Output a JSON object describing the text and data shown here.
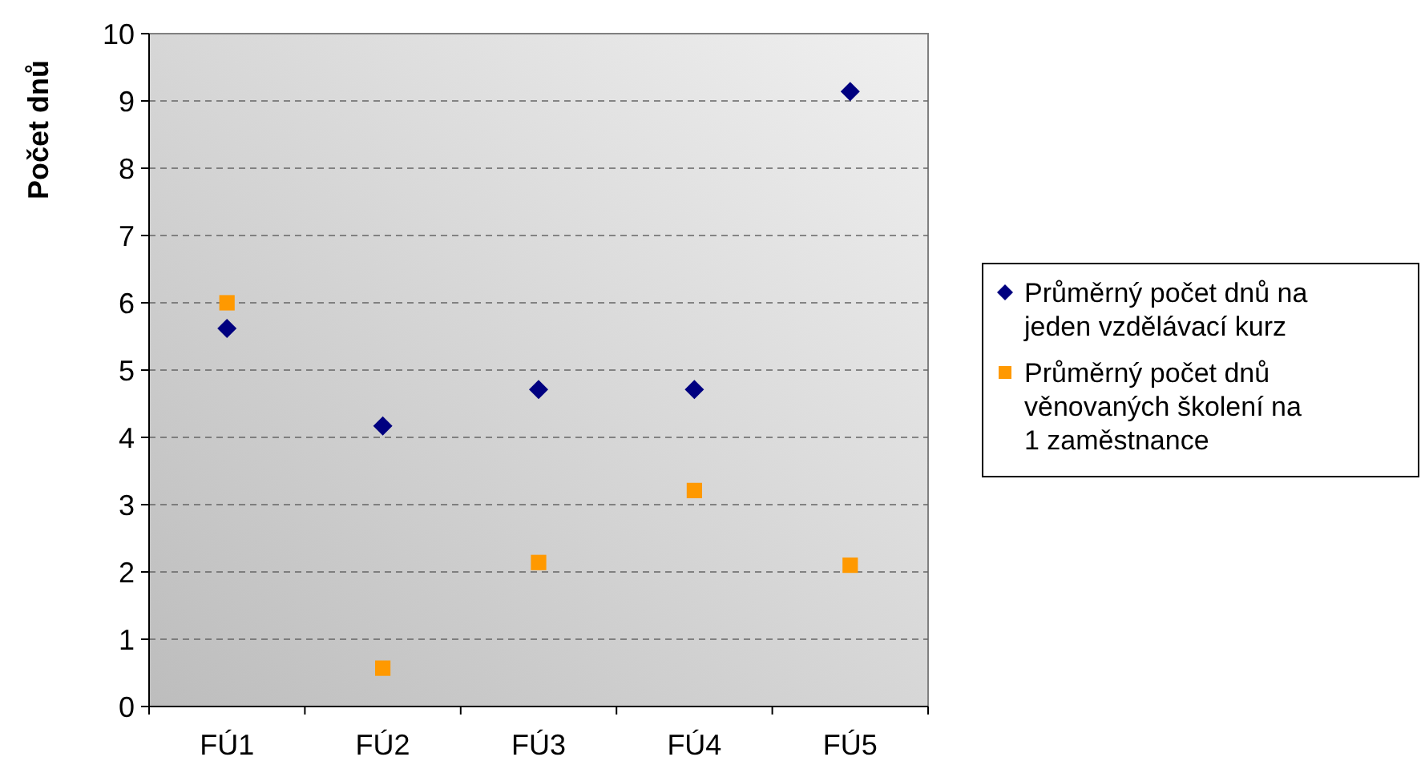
{
  "chart_data": {
    "type": "scatter",
    "ylabel": "Počet dnů",
    "categories": [
      "FÚ1",
      "FÚ2",
      "FÚ3",
      "FÚ4",
      "FÚ5"
    ],
    "series": [
      {
        "name": "Průměrný počet dnů na jeden vzdělávací kurz",
        "color": "#000080",
        "marker": "diamond",
        "values": [
          5.62,
          4.17,
          4.71,
          4.71,
          9.14
        ]
      },
      {
        "name": "Průměrný počet dnů věnovaných školení na 1 zaměstnance",
        "color": "#ff9900",
        "marker": "square",
        "values": [
          6.0,
          0.57,
          2.14,
          3.21,
          2.1
        ]
      }
    ],
    "ylim": [
      0,
      10
    ],
    "yticks": [
      0,
      1,
      2,
      3,
      4,
      5,
      6,
      7,
      8,
      9,
      10
    ],
    "grid": "y",
    "legend": "right"
  }
}
